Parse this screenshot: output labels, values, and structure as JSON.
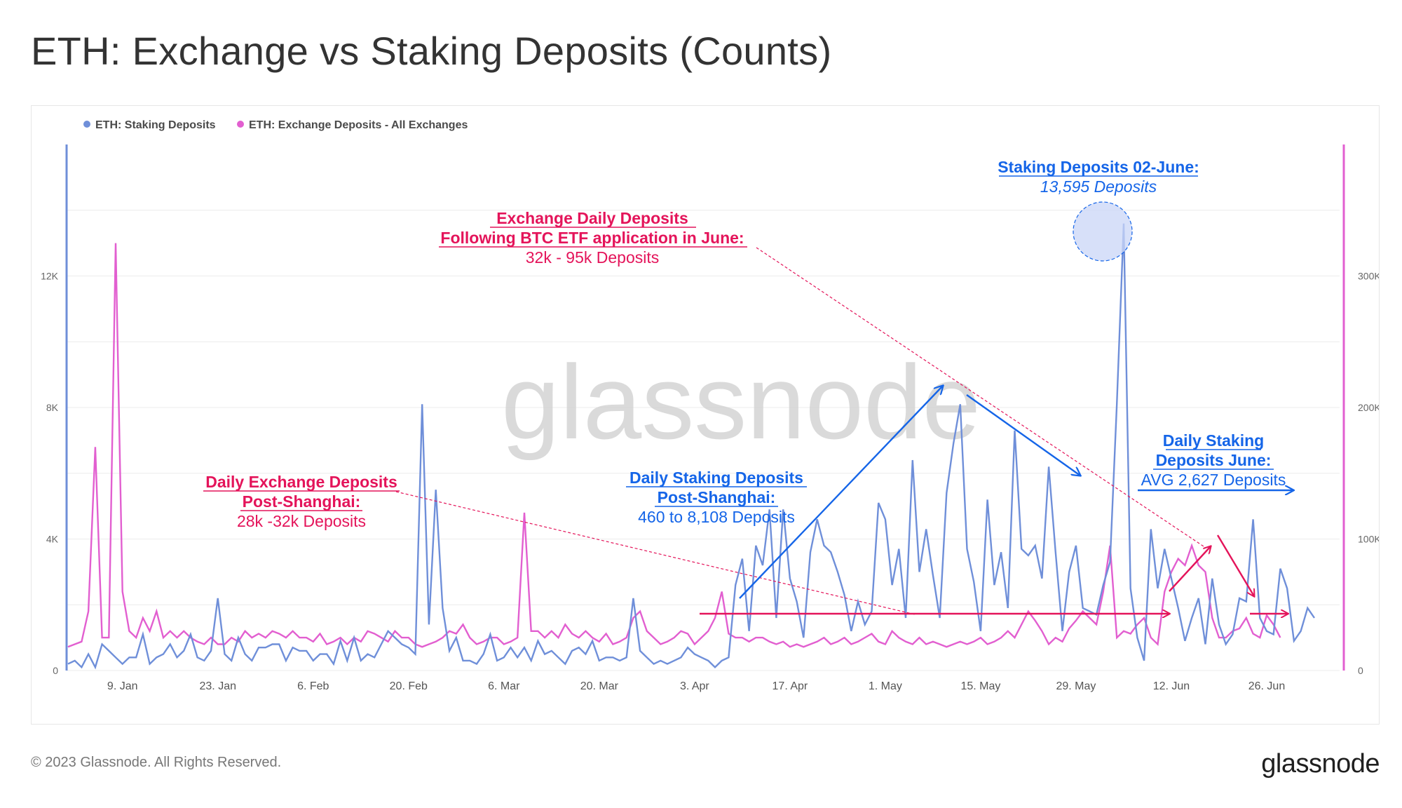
{
  "title": "ETH: Exchange vs Staking Deposits (Counts)",
  "footer": {
    "copyright": "© 2023 Glassnode. All Rights Reserved.",
    "brand": "glassnode"
  },
  "watermark": "glassnode",
  "colors": {
    "staking": "#6f8fd9",
    "exchange": "#e25fd0",
    "annotation_pink": "#e4145a",
    "annotation_blue": "#1565e8"
  },
  "chart_data": {
    "type": "line",
    "legend": {
      "position": "top-left",
      "items": [
        "ETH: Staking Deposits",
        "ETH: Exchange Deposits - All Exchanges"
      ]
    },
    "grid": true,
    "x_ticks": [
      "9. Jan",
      "23. Jan",
      "6. Feb",
      "20. Feb",
      "6. Mar",
      "20. Mar",
      "3. Apr",
      "17. Apr",
      "1. May",
      "15. May",
      "29. May",
      "12. Jun",
      "26. Jun"
    ],
    "x_start": "2023-01-01",
    "y_left": {
      "ticks": [
        "0",
        "4K",
        "8K",
        "12K"
      ],
      "range": [
        0,
        16000
      ]
    },
    "y_right": {
      "ticks": [
        "0",
        "100K",
        "200K",
        "300K"
      ],
      "range": [
        0,
        400000
      ]
    },
    "series": [
      {
        "name": "ETH: Staking Deposits",
        "axis": "left",
        "values": [
          200,
          300,
          100,
          500,
          100,
          800,
          600,
          400,
          200,
          400,
          400,
          1100,
          200,
          400,
          500,
          800,
          400,
          600,
          1100,
          400,
          300,
          600,
          2200,
          500,
          300,
          1000,
          500,
          300,
          700,
          700,
          800,
          800,
          300,
          700,
          600,
          600,
          300,
          500,
          500,
          200,
          900,
          300,
          1000,
          300,
          500,
          400,
          800,
          1200,
          1000,
          800,
          700,
          500,
          8100,
          1400,
          5500,
          1900,
          600,
          1000,
          300,
          300,
          200,
          500,
          1100,
          300,
          400,
          700,
          400,
          700,
          300,
          900,
          500,
          600,
          400,
          200,
          600,
          700,
          500,
          900,
          300,
          400,
          400,
          300,
          400,
          2200,
          600,
          400,
          200,
          300,
          200,
          300,
          400,
          700,
          500,
          400,
          300,
          100,
          300,
          400,
          2600,
          3400,
          1200,
          3800,
          3200,
          4900,
          1600,
          4900,
          2800,
          2100,
          1000,
          3600,
          4600,
          3800,
          3600,
          3000,
          2300,
          1200,
          2100,
          1400,
          1800,
          5100,
          4600,
          2600,
          3700,
          1600,
          6400,
          3000,
          4300,
          2900,
          1600,
          5400,
          6900,
          8100,
          3700,
          2700,
          1200,
          5200,
          2600,
          3600,
          1900,
          7300,
          3700,
          3500,
          3800,
          2800,
          6200,
          3600,
          1200,
          3000,
          3800,
          1900,
          1800,
          1700,
          2600,
          3300,
          8100,
          13595,
          2500,
          1000,
          300,
          4300,
          2500,
          3700,
          2800,
          1900,
          900,
          1600,
          2200,
          800,
          2800,
          1400,
          800,
          1100,
          2200,
          2100,
          4600,
          1600,
          1200,
          1100,
          3100,
          2500,
          900,
          1200,
          1900,
          1600
        ],
        "color": "#6f8fd9"
      },
      {
        "name": "ETH: Exchange Deposits - All Exchanges",
        "axis": "right",
        "values": [
          18000,
          20000,
          22000,
          45000,
          170000,
          25000,
          25000,
          325000,
          60000,
          30000,
          25000,
          40000,
          30000,
          45000,
          25000,
          30000,
          25000,
          30000,
          25000,
          22000,
          20000,
          25000,
          20000,
          20000,
          25000,
          22000,
          30000,
          25000,
          28000,
          25000,
          30000,
          28000,
          25000,
          30000,
          25000,
          25000,
          22000,
          28000,
          20000,
          22000,
          25000,
          20000,
          25000,
          22000,
          30000,
          28000,
          25000,
          22000,
          30000,
          25000,
          25000,
          20000,
          18000,
          20000,
          22000,
          25000,
          30000,
          28000,
          35000,
          25000,
          20000,
          22000,
          25000,
          25000,
          20000,
          22000,
          25000,
          120000,
          30000,
          30000,
          25000,
          30000,
          25000,
          35000,
          28000,
          25000,
          30000,
          25000,
          22000,
          28000,
          20000,
          22000,
          25000,
          40000,
          45000,
          30000,
          25000,
          20000,
          22000,
          25000,
          30000,
          28000,
          20000,
          25000,
          30000,
          40000,
          60000,
          28000,
          25000,
          25000,
          22000,
          25000,
          25000,
          22000,
          20000,
          22000,
          18000,
          20000,
          18000,
          20000,
          22000,
          25000,
          20000,
          22000,
          25000,
          20000,
          22000,
          25000,
          28000,
          22000,
          20000,
          30000,
          25000,
          22000,
          20000,
          25000,
          20000,
          22000,
          20000,
          18000,
          20000,
          22000,
          20000,
          22000,
          25000,
          20000,
          22000,
          25000,
          30000,
          25000,
          35000,
          45000,
          38000,
          30000,
          20000,
          25000,
          22000,
          32000,
          38000,
          45000,
          40000,
          35000,
          60000,
          95000,
          25000,
          30000,
          28000,
          35000,
          40000,
          25000,
          20000,
          60000,
          75000,
          85000,
          80000,
          95000,
          80000,
          75000,
          40000,
          25000,
          25000,
          30000,
          32000,
          40000,
          28000,
          25000,
          42000,
          35000,
          25000
        ]
      }
    ]
  },
  "annotations": {
    "exchange_june": {
      "title1": "Exchange Daily Deposits",
      "title2": "Following BTC ETF application in June:",
      "body": "32k - 95k Deposits"
    },
    "exchange_shanghai": {
      "title1": "Daily Exchange Deposits",
      "title2": "Post-Shanghai:",
      "body": "28k -32k Deposits"
    },
    "staking_shanghai": {
      "title1": "Daily Staking Deposits",
      "title2": "Post-Shanghai:",
      "body": "460 to 8,108 Deposits"
    },
    "staking_peak": {
      "title1": "Staking Deposits 02-June:",
      "body": "13,595 Deposits"
    },
    "staking_june": {
      "title1": "Daily Staking",
      "title2": "Deposits June:",
      "body": "AVG 2,627 Deposits"
    }
  }
}
